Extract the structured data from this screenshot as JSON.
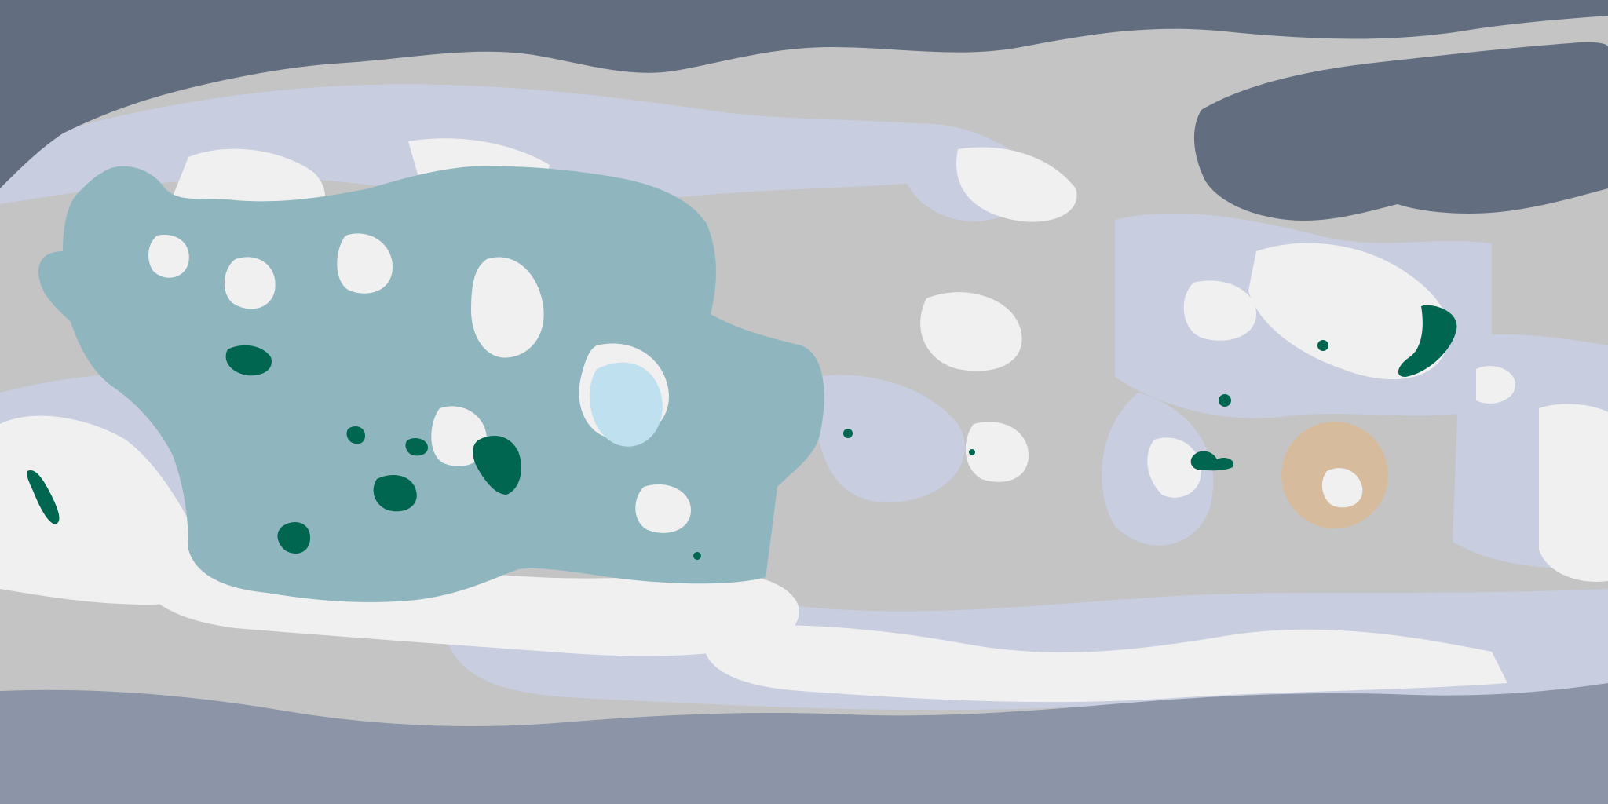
{
  "map": {
    "projection": "equirectangular",
    "legend_visible": false,
    "labels_visible": false,
    "palette": {
      "north_polar_cap": "#626e80",
      "south_polar_cap": "#8b95a7",
      "plains_gray": "#c4c4c4",
      "lavender_highlands": "#c8cde0",
      "white_terrain": "#f0f0f0",
      "teal_basin": "#8fb6bf",
      "pale_blue_terrain": "#bfe0ee",
      "dark_green_features": "#00664f",
      "tan_basin": "#d6bc9c"
    },
    "regions": [
      {
        "name": "north-polar-cap",
        "color": "north_polar_cap"
      },
      {
        "name": "northeast-polar-lobe",
        "color": "north_polar_cap"
      },
      {
        "name": "south-polar-cap",
        "color": "south_polar_cap"
      },
      {
        "name": "western-teal-basin",
        "color": "teal_basin"
      },
      {
        "name": "central-pale-blue-patch",
        "color": "pale_blue_terrain"
      },
      {
        "name": "eastern-tan-circular-basin",
        "color": "tan_basin"
      },
      {
        "name": "dark-green-features",
        "color": "dark_green_features"
      },
      {
        "name": "white-highland-terrain",
        "color": "white_terrain"
      },
      {
        "name": "lavender-highland-terrain",
        "color": "lavender_highlands"
      }
    ]
  }
}
